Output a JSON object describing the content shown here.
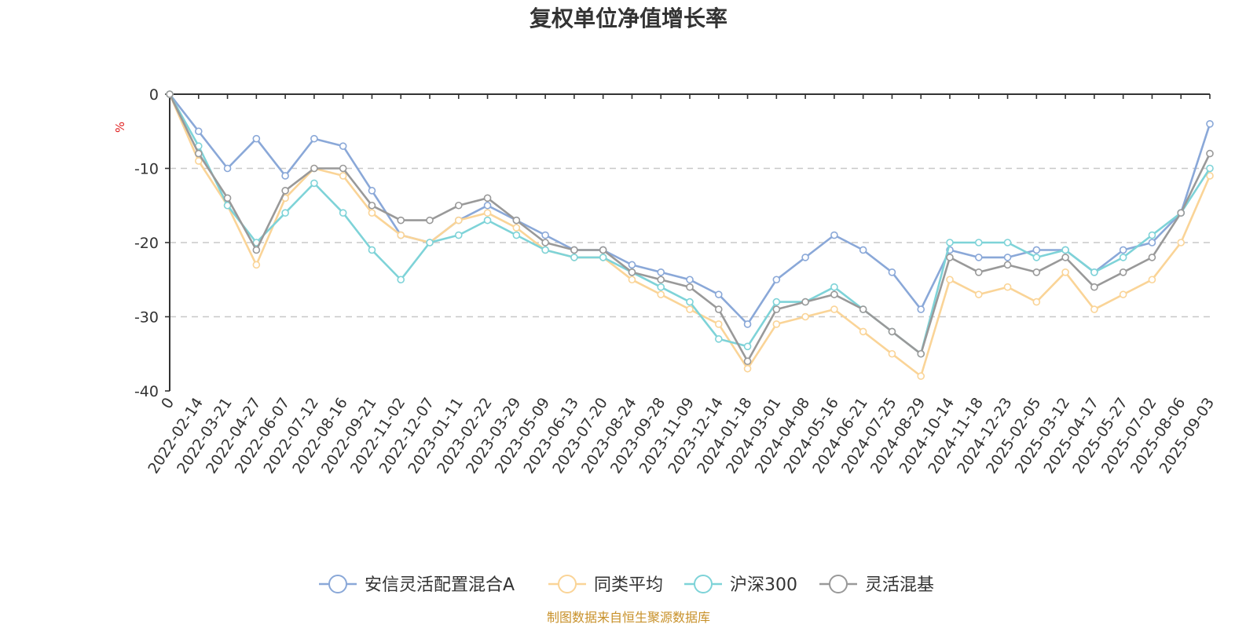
{
  "chart_data": {
    "type": "line",
    "title": "复权单位净值增长率",
    "ylabel": "%",
    "ylim": [
      -40,
      0
    ],
    "yticks": [
      0,
      -10,
      -20,
      -30,
      -40
    ],
    "y_tick_labels": [
      "0",
      "-10",
      "-20",
      "-30",
      "-40"
    ],
    "grid": true,
    "legend_position": "bottom",
    "x_tick_labels": [
      "0",
      "2022-02-14",
      "2022-03-21",
      "2022-04-27",
      "2022-06-07",
      "2022-07-12",
      "2022-08-16",
      "2022-09-21",
      "2022-11-02",
      "2022-12-07",
      "2023-01-11",
      "2023-02-22",
      "2023-03-29",
      "2023-05-09",
      "2023-06-13",
      "2023-07-20",
      "2023-08-24",
      "2023-09-28",
      "2023-11-09",
      "2023-12-14",
      "2024-01-18",
      "2024-03-01",
      "2024-04-08",
      "2024-05-16",
      "2024-06-21",
      "2024-07-25",
      "2024-08-29",
      "2024-10-14",
      "2024-11-18",
      "2024-12-23",
      "2025-02-05",
      "2025-03-12",
      "2025-04-17",
      "2025-05-27",
      "2025-07-02",
      "2025-08-06",
      "2025-09-03"
    ],
    "x": [
      "0",
      "2022-02-14",
      "2022-03-21",
      "2022-04-27",
      "2022-06-07",
      "2022-07-12",
      "2022-08-16",
      "2022-09-21",
      "2022-11-02",
      "2022-12-07",
      "2023-01-11",
      "2023-02-22",
      "2023-03-29",
      "2023-05-09",
      "2023-06-13",
      "2023-07-20",
      "2023-08-24",
      "2023-09-28",
      "2023-11-09",
      "2023-12-14",
      "2024-01-18",
      "2024-03-01",
      "2024-04-08",
      "2024-05-16",
      "2024-06-21",
      "2024-07-25",
      "2024-08-29",
      "2024-10-14",
      "2024-11-18",
      "2024-12-23",
      "2025-02-05",
      "2025-03-12",
      "2025-04-17",
      "2025-05-27",
      "2025-07-02",
      "2025-08-06",
      "2025-09-03"
    ],
    "series": [
      {
        "name": "安信灵活配置混合A",
        "color": "#8aa8d8",
        "values": [
          0,
          -5,
          -10,
          -6,
          -11,
          -6,
          -7,
          -13,
          -19,
          -20,
          -17,
          -15,
          -17,
          -19,
          -21,
          -21,
          -23,
          -24,
          -25,
          -27,
          -31,
          -25,
          -22,
          -19,
          -21,
          -24,
          -29,
          -21,
          -22,
          -22,
          -21,
          -21,
          -24,
          -21,
          -20,
          -16,
          -4
        ]
      },
      {
        "name": "同类平均",
        "color": "#fad497",
        "values": [
          0,
          -9,
          -15,
          -23,
          -14,
          -10,
          -11,
          -16,
          -19,
          -20,
          -17,
          -16,
          -18,
          -21,
          -22,
          -22,
          -25,
          -27,
          -29,
          -31,
          -37,
          -31,
          -30,
          -29,
          -32,
          -35,
          -38,
          -25,
          -27,
          -26,
          -28,
          -24,
          -29,
          -27,
          -25,
          -20,
          -11
        ]
      },
      {
        "name": "沪深300",
        "color": "#7ed3d8",
        "values": [
          0,
          -7,
          -15,
          -20,
          -16,
          -12,
          -16,
          -21,
          -25,
          -20,
          -19,
          -17,
          -19,
          -21,
          -22,
          -22,
          -24,
          -26,
          -28,
          -33,
          -34,
          -28,
          -28,
          -26,
          -29,
          -32,
          -35,
          -20,
          -20,
          -20,
          -22,
          -21,
          -24,
          -22,
          -19,
          -16,
          -10
        ]
      },
      {
        "name": "灵活混基",
        "color": "#999999",
        "values": [
          0,
          -8,
          -14,
          -21,
          -13,
          -10,
          -10,
          -15,
          -17,
          -17,
          -15,
          -14,
          -17,
          -20,
          -21,
          -21,
          -24,
          -25,
          -26,
          -29,
          -36,
          -29,
          -28,
          -27,
          -29,
          -32,
          -35,
          -22,
          -24,
          -23,
          -24,
          -22,
          -26,
          -24,
          -22,
          -16,
          -8
        ]
      }
    ]
  },
  "footer": {
    "source": "制图数据来自恒生聚源数据库"
  }
}
